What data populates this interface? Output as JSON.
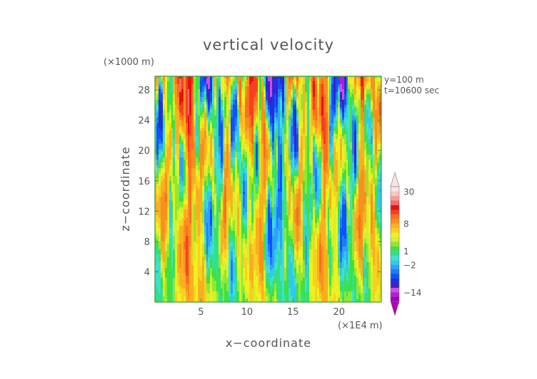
{
  "chart_data": {
    "type": "heatmap",
    "title": "vertical velocity",
    "xlabel": "x−coordinate",
    "ylabel": "z−coordinate",
    "x_unit": "(×1E4 m)",
    "y_unit": "(×1000 m)",
    "annotations": [
      "y=100 m",
      "t=10600 sec"
    ],
    "xlim": [
      0,
      24.6
    ],
    "ylim": [
      0,
      29.8
    ],
    "x_ticks": [
      5,
      10,
      15,
      20
    ],
    "y_ticks": [
      4,
      8,
      12,
      16,
      20,
      24,
      28
    ],
    "colorbar": {
      "labels": [
        "30",
        "8",
        "1",
        "−2",
        "−14"
      ],
      "label_values": [
        30,
        8,
        1,
        -2,
        -14
      ],
      "levels": [
        -20,
        -17,
        -14,
        -11,
        -8,
        -6,
        -4,
        -3,
        -2,
        -1,
        0,
        1,
        2,
        3,
        4,
        5,
        6,
        8,
        10,
        12,
        15,
        18,
        22,
        26,
        30,
        35
      ],
      "colors": [
        "#a000c8",
        "#b020d0",
        "#c850e0",
        "#4020c8",
        "#2030e0",
        "#1050ff",
        "#2078ff",
        "#30a0ff",
        "#30c8f0",
        "#40e0d0",
        "#30e090",
        "#40e040",
        "#90e830",
        "#d0f030",
        "#f0f020",
        "#f8d020",
        "#f8b020",
        "#f89020",
        "#f87020",
        "#f84020",
        "#e81010",
        "#f46a6a",
        "#f89a9a",
        "#fbc4c4",
        "#fde4e4"
      ],
      "extend": "both",
      "under_color": "#b000b8",
      "over_color": "#fde4e4"
    }
  }
}
